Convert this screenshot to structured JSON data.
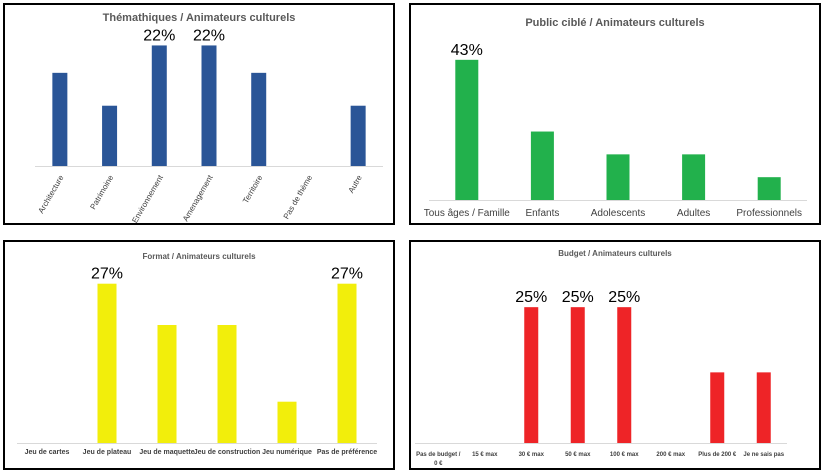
{
  "chart_data": [
    {
      "type": "bar",
      "title": "Thémathiques / Animateurs culturels",
      "categories": [
        "Architecture",
        "Patrimoine",
        "Environnement",
        "Amenagement",
        "Territoire",
        "Pas de thème",
        "Autre"
      ],
      "values": [
        17,
        11,
        22,
        22,
        17,
        0,
        11
      ],
      "data_labels": [
        "",
        "",
        "22%",
        "22%",
        "",
        "",
        ""
      ],
      "ylim": [
        0,
        25
      ],
      "color": "#2A5597",
      "grid": false,
      "legend": "none"
    },
    {
      "type": "bar",
      "title": "Public ciblé / Animateurs culturels",
      "categories": [
        "Tous âges / Famille",
        "Enfants",
        "Adolescents",
        "Adultes",
        "Professionnels"
      ],
      "values": [
        43,
        21,
        14,
        14,
        7
      ],
      "data_labels": [
        "43%",
        "",
        "",
        "",
        ""
      ],
      "ylim": [
        0,
        50
      ],
      "color": "#22B14C",
      "grid": false,
      "legend": "none"
    },
    {
      "type": "bar",
      "title": "Format / Animateurs culturels",
      "categories": [
        "Jeu de cartes",
        "Jeu de plateau",
        "Jeu de maquette",
        "Jeu de construction",
        "Jeu numérique",
        "Pas de préférence"
      ],
      "values": [
        0,
        27,
        20,
        20,
        7,
        27
      ],
      "data_labels": [
        "",
        "27%",
        "",
        "",
        "",
        "27%"
      ],
      "ylim": [
        0,
        30
      ],
      "color": "#F2EE0B",
      "grid": false,
      "legend": "none"
    },
    {
      "type": "bar",
      "title": "Budget / Animateurs culturels",
      "categories": [
        "Pas de budget / 0 €",
        "15 € max",
        "30 € max",
        "50 € max",
        "100 € max",
        "200 € max",
        "Plus de 200 €",
        "Je ne sais pas"
      ],
      "values": [
        0,
        0,
        25,
        25,
        25,
        0,
        13,
        13
      ],
      "data_labels": [
        "",
        "",
        "25%",
        "25%",
        "25%",
        "",
        "",
        ""
      ],
      "ylim": [
        0,
        30
      ],
      "color": "#EE2427",
      "grid": false,
      "legend": "none"
    }
  ]
}
